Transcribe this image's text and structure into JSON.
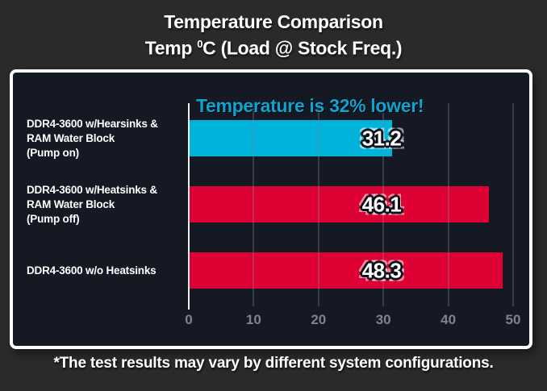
{
  "title": {
    "line1": "Temperature Comparison",
    "line2_pre": "Temp ",
    "line2_sup": "0",
    "line2_post": "C (Load @ Stock Freq.)"
  },
  "chart_data": {
    "type": "bar",
    "orientation": "horizontal",
    "title": "Temperature Comparison",
    "subtitle": "Temp 0C (Load @ Stock Freq.)",
    "annotation": "Temperature is 32% lower!",
    "categories": [
      [
        "DDR4-3600 w/Hearsinks &",
        "RAM Water Block",
        "(Pump on)"
      ],
      [
        "DDR4-3600 w/Heatsinks &",
        "RAM Water Block",
        "(Pump off)"
      ],
      [
        "DDR4-3600 w/o Heatsinks"
      ]
    ],
    "values": [
      31.2,
      46.1,
      48.3
    ],
    "value_labels": [
      "31.2",
      "46.1",
      "48.3"
    ],
    "bar_colors": [
      "#00b3da",
      "#dd0233",
      "#dd0233"
    ],
    "xlim": [
      0,
      50
    ],
    "xticks": [
      0,
      10,
      20,
      30,
      40,
      50
    ],
    "grid": true,
    "legend": false
  },
  "footer": "*The test results may vary by different system configurations.",
  "colors": {
    "background": "#2a2a2a",
    "panel_background": "#151924",
    "panel_border": "#ffffff",
    "accent_cyan": "#00b3da",
    "accent_red": "#dd0233",
    "annotation_text": "#0ea4d2",
    "tick_text": "#7f838b",
    "text": "#ffffff"
  }
}
